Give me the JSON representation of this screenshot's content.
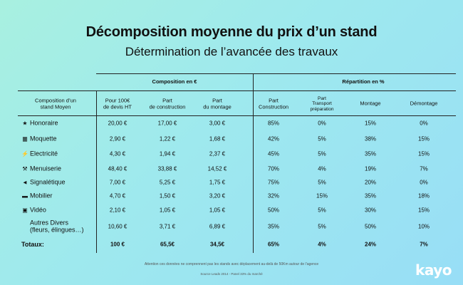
{
  "title": "Décomposition moyenne du prix d’un stand",
  "subtitle": "Détermination de l’avancée des travaux",
  "group_headers": {
    "composition": "Composition en €",
    "repartition": "Répartition en %"
  },
  "columns": {
    "label": "Composition d’un\nstand Moyen",
    "c1": "Pour 100€\nde devis HT",
    "c2": "Part\nde construction",
    "c3": "Part\ndu montage",
    "c4": "Part\nConstruction",
    "c5": "Part\nTransport\npréparation",
    "c6": "Montage",
    "c7": "Démontage"
  },
  "rows": [
    {
      "icon": "trophy-icon",
      "glyph": "★",
      "label": "Honoraire",
      "values": [
        "20,00 €",
        "17,00 €",
        "3,00 €",
        "85%",
        "0%",
        "15%",
        "0%"
      ]
    },
    {
      "icon": "carpet-icon",
      "glyph": "▦",
      "label": "Moquette",
      "values": [
        "2,90 €",
        "1,22 €",
        "1,68 €",
        "42%",
        "5%",
        "38%",
        "15%"
      ]
    },
    {
      "icon": "plug-icon",
      "glyph": "⚡",
      "label": "Electricité",
      "values": [
        "4,30 €",
        "1,94 €",
        "2,37 €",
        "45%",
        "5%",
        "35%",
        "15%"
      ]
    },
    {
      "icon": "carpenter-icon",
      "glyph": "⚒",
      "label": "Menuiserie",
      "values": [
        "48,40 €",
        "33,88 €",
        "14,52 €",
        "70%",
        "4%",
        "19%",
        "7%"
      ]
    },
    {
      "icon": "megaphone-icon",
      "glyph": "◄",
      "label": "Signalétique",
      "values": [
        "7,00 €",
        "5,25 €",
        "1,75 €",
        "75%",
        "5%",
        "20%",
        "0%"
      ]
    },
    {
      "icon": "sofa-icon",
      "glyph": "▬",
      "label": "Mobilier",
      "values": [
        "4,70 €",
        "1,50 €",
        "3,20 €",
        "32%",
        "15%",
        "35%",
        "18%"
      ]
    },
    {
      "icon": "tv-icon",
      "glyph": "▣",
      "label": "Vidéo",
      "values": [
        "2,10 €",
        "1,05 €",
        "1,05 €",
        "50%",
        "5%",
        "30%",
        "15%"
      ]
    },
    {
      "icon": "",
      "glyph": "",
      "label": "Autres Divers\n(fleurs, élingues…)",
      "values": [
        "10,60 €",
        "3,71 €",
        "6,89 €",
        "35%",
        "5%",
        "50%",
        "10%"
      ]
    }
  ],
  "totals": {
    "label": "Totaux:",
    "values": [
      "100 €",
      "65,5€",
      "34,5€",
      "65%",
      "4%",
      "24%",
      "7%"
    ]
  },
  "footnote": "Attention ces données ne comprennent pas les stands avec déplacement au-delà de 50Km autour de l’agence",
  "source": "Source Leads 2014 - Panel 33% du marché",
  "logo": "kayo",
  "colors": {
    "logo": "#ffffff",
    "text": "#111111"
  }
}
